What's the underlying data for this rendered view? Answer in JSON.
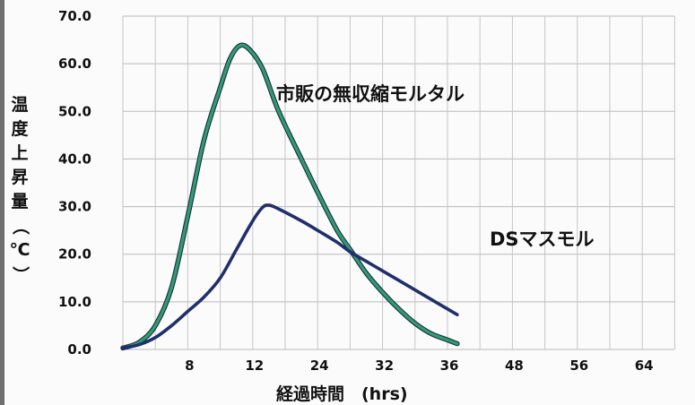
{
  "chart_data": {
    "type": "line",
    "title": "",
    "xlabel": "経過時間　(hrs)",
    "ylabel": "温度上昇量（℃）",
    "x_tick_labels": [
      "8",
      "12",
      "24",
      "32",
      "36",
      "48",
      "56",
      "64"
    ],
    "y_ticks": [
      0,
      10,
      20,
      30,
      40,
      50,
      60,
      70
    ],
    "y_tick_labels": [
      "0.0",
      "10.0",
      "20.0",
      "30.0",
      "40.0",
      "50.0",
      "60.0",
      "70.0"
    ],
    "ylim": [
      0,
      70
    ],
    "grid": true,
    "legend": "none",
    "series": [
      {
        "name": "市販の無収縮モルタル",
        "color": "#2f9e6a",
        "points": [
          [
            0,
            0.3
          ],
          [
            0.5,
            1.5
          ],
          [
            1,
            5
          ],
          [
            1.5,
            13
          ],
          [
            2,
            28
          ],
          [
            2.5,
            44
          ],
          [
            3,
            55
          ],
          [
            3.3,
            61
          ],
          [
            3.6,
            63.8
          ],
          [
            3.9,
            63
          ],
          [
            4.3,
            59
          ],
          [
            4.8,
            50
          ],
          [
            5.5,
            40
          ],
          [
            6,
            33
          ],
          [
            6.6,
            25
          ],
          [
            7,
            21
          ],
          [
            7.5,
            16
          ],
          [
            8,
            12
          ],
          [
            8.5,
            8.5
          ],
          [
            9,
            5.5
          ],
          [
            9.5,
            3.3
          ],
          [
            10,
            2
          ],
          [
            10.3,
            1.2
          ]
        ]
      },
      {
        "name": "DSマスモル",
        "color": "#1f2f6b",
        "points": [
          [
            0,
            0.3
          ],
          [
            0.5,
            1
          ],
          [
            1,
            2.5
          ],
          [
            1.5,
            5
          ],
          [
            2,
            8
          ],
          [
            2.5,
            11
          ],
          [
            3,
            15
          ],
          [
            3.5,
            21
          ],
          [
            4,
            27
          ],
          [
            4.3,
            29.8
          ],
          [
            4.5,
            30.3
          ],
          [
            4.8,
            29.5
          ],
          [
            5.5,
            27
          ],
          [
            6,
            25
          ],
          [
            6.6,
            22.5
          ],
          [
            7,
            20.5
          ],
          [
            7.5,
            18.5
          ],
          [
            8,
            16.5
          ],
          [
            8.5,
            14.5
          ],
          [
            9,
            12.5
          ],
          [
            9.5,
            10.5
          ],
          [
            10,
            8.5
          ],
          [
            10.3,
            7.3
          ]
        ]
      }
    ]
  }
}
